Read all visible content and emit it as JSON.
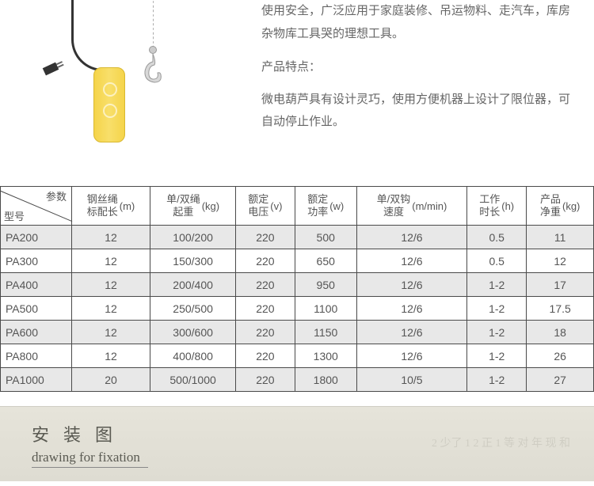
{
  "intro": {
    "line1": "使用安全，广泛应用于家庭装修、吊运物料、走汽车，库房杂物库工具哭的理想工具。",
    "features_label": "产品特点：",
    "features_text": "微电葫芦具有设计灵巧，使用方便机器上设计了限位器，可自动停止作业。"
  },
  "table": {
    "diag_top": "参数",
    "diag_bottom": "型号",
    "columns": [
      {
        "label": "钢丝绳\n标配长",
        "unit": "(m)"
      },
      {
        "label": "单/双绳\n起重",
        "unit": "(kg)"
      },
      {
        "label": "额定\n电压",
        "unit": "(v)"
      },
      {
        "label": "额定\n功率",
        "unit": "(w)"
      },
      {
        "label": "单/双钩\n速度",
        "unit": "(m/min)"
      },
      {
        "label": "工作\n时长",
        "unit": "(h)"
      },
      {
        "label": "产品\n净重",
        "unit": "(kg)"
      }
    ],
    "rows": [
      [
        "PA200",
        "12",
        "100/200",
        "220",
        "500",
        "12/6",
        "0.5",
        "11"
      ],
      [
        "PA300",
        "12",
        "150/300",
        "220",
        "650",
        "12/6",
        "0.5",
        "12"
      ],
      [
        "PA400",
        "12",
        "200/400",
        "220",
        "950",
        "12/6",
        "1-2",
        "17"
      ],
      [
        "PA500",
        "12",
        "250/500",
        "220",
        "1100",
        "12/6",
        "1-2",
        "17.5"
      ],
      [
        "PA600",
        "12",
        "300/600",
        "220",
        "1150",
        "12/6",
        "1-2",
        "18"
      ],
      [
        "PA800",
        "12",
        "400/800",
        "220",
        "1300",
        "12/6",
        "1-2",
        "26"
      ],
      [
        "PA1000",
        "20",
        "500/1000",
        "220",
        "1800",
        "10/5",
        "1-2",
        "27"
      ]
    ]
  },
  "bottom": {
    "cn": "安装图",
    "en": "drawing for fixation"
  },
  "colors": {
    "controller": "#f6d955",
    "border": "#4a4a4a",
    "row_alt": "#e8e8e8",
    "strip_bg": "#e2e0d6"
  }
}
